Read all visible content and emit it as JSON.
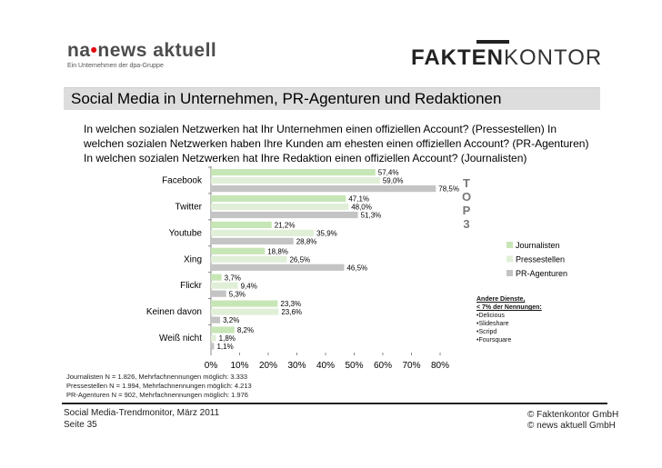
{
  "logos": {
    "na_left": "na",
    "na_dot": "•",
    "na_right": "news aktuell",
    "na_sub": "Ein Unternehmen der dpa-Gruppe",
    "fk_bold": "FAKTEN",
    "fk_light": "KONTOR"
  },
  "title": "Social Media in Unternehmen, PR-Agenturen und Redaktionen",
  "questions": [
    "In welchen sozialen Netzwerken hat Ihr Unternehmen einen offiziellen Account? (Pressestellen) In",
    "welchen sozialen Netzwerken haben Ihre Kunden am ehesten einen offiziellen Account? (PR-Agenturen)",
    "In welchen sozialen Netzwerken hat Ihre Redaktion einen offiziellen Account? (Journalisten)"
  ],
  "chart_data": {
    "type": "bar",
    "orientation": "horizontal",
    "categories": [
      "Facebook",
      "Twitter",
      "Youtube",
      "Xing",
      "Flickr",
      "Keinen davon",
      "Weiß nicht"
    ],
    "series": [
      {
        "name": "Journalisten",
        "values": [
          57.4,
          47.1,
          21.2,
          18.8,
          3.7,
          23.3,
          8.2
        ],
        "labels": [
          "57,4%",
          "47,1%",
          "21,2%",
          "18,8%",
          "3,7%",
          "23,3%",
          "8,2%"
        ]
      },
      {
        "name": "Pressestellen",
        "values": [
          59.0,
          48.0,
          35.9,
          26.5,
          9.4,
          23.6,
          1.8
        ],
        "labels": [
          "59,0%",
          "48,0%",
          "35,9%",
          "26,5%",
          "9,4%",
          "23,6%",
          "1,8%"
        ]
      },
      {
        "name": "PR-Agenturen",
        "values": [
          78.5,
          51.3,
          28.8,
          46.5,
          5.3,
          3.2,
          1.1
        ],
        "labels": [
          "78,5%",
          "51,3%",
          "28,8%",
          "46,5%",
          "5,3%",
          "3,2%",
          "1,1%"
        ]
      }
    ],
    "xlim": [
      0,
      80
    ],
    "xticks": [
      "0%",
      "10%",
      "20%",
      "30%",
      "40%",
      "50%",
      "60%",
      "70%",
      "80%"
    ],
    "legend": "right",
    "colors": {
      "Journalisten": "#c7e6b6",
      "Pressestellen": "#e1efd8",
      "PR-Agenturen": "#c4c4c4"
    }
  },
  "top3": [
    "T",
    "O",
    "P",
    "3"
  ],
  "other_services": {
    "heading": "Andere Dienste,",
    "subheading": "< 7% der Nennungen:",
    "items": [
      "•Delicious",
      "•Slideshare",
      "•Scripd",
      "•Foursquare"
    ]
  },
  "notes": [
    "Journalisten N = 1.826, Mehrfachnennungen möglich: 3.333",
    "Pressestellen N = 1.994, Mehrfachnennungen möglich: 4.213",
    "PR-Agenturen N = 902, Mehrfachnennungen möglich: 1.976"
  ],
  "footer": {
    "left1": "Social Media-Trendmonitor, März 2011",
    "left2": "Seite 35",
    "right1": "© Faktenkontor GmbH",
    "right2": "© news aktuell GmbH"
  }
}
